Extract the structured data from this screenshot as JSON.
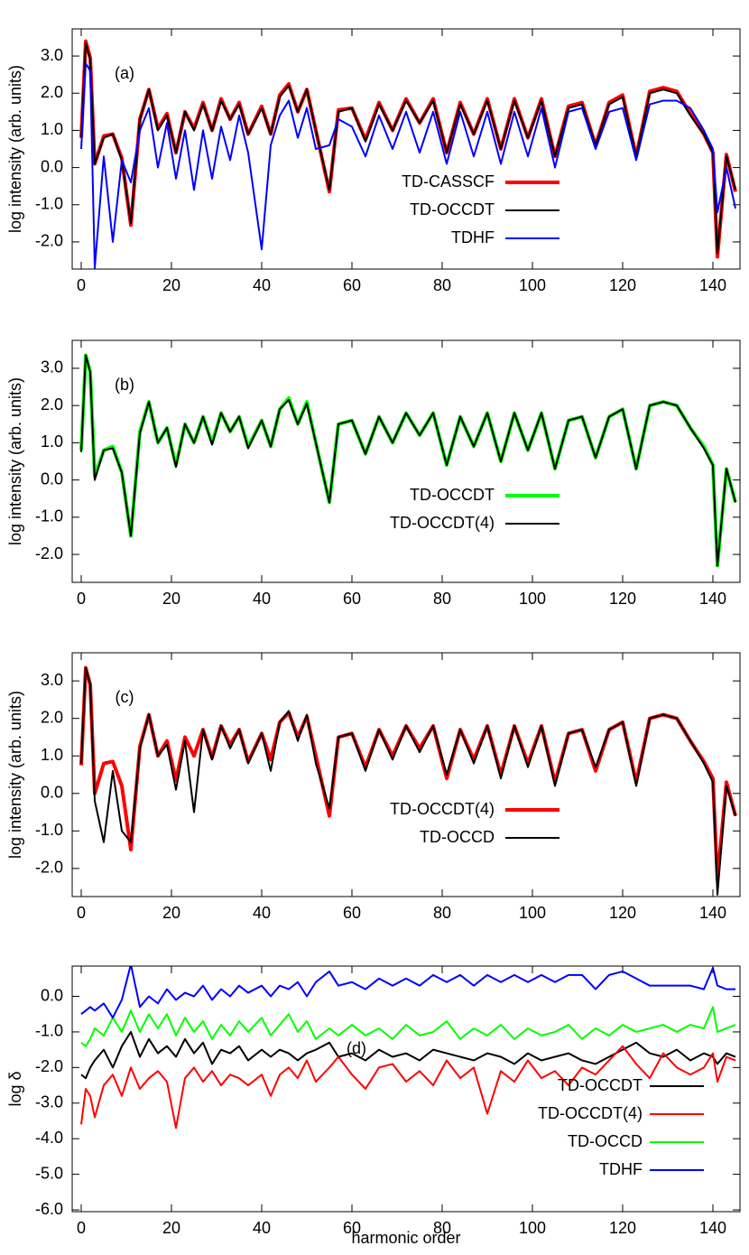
{
  "chart_data": [
    {
      "type": "line",
      "ylabel": "log intensity (arb. units)",
      "annotation": "(a)",
      "legend": "center right",
      "x": [
        0,
        1,
        2,
        3,
        5,
        7,
        9,
        11,
        13,
        15,
        17,
        19,
        21,
        23,
        25,
        27,
        29,
        31,
        33,
        35,
        37,
        40,
        42,
        44,
        46,
        48,
        50,
        52,
        55,
        57,
        60,
        63,
        66,
        69,
        72,
        75,
        78,
        81,
        84,
        87,
        90,
        93,
        96,
        99,
        102,
        105,
        108,
        111,
        114,
        117,
        120,
        123,
        126,
        129,
        132,
        135,
        138,
        140,
        141,
        143,
        145
      ],
      "xlim": [
        -2,
        146
      ],
      "xticks": [
        0,
        20,
        40,
        60,
        80,
        100,
        120,
        140
      ],
      "ylim": [
        -2.73,
        3.73
      ],
      "yticks": [
        {
          "value": -2,
          "label": "-2.0"
        },
        {
          "value": -1,
          "label": "-1.0"
        },
        {
          "value": 0,
          "label": "0.0"
        },
        {
          "value": 1,
          "label": "1.0"
        },
        {
          "value": 2,
          "label": "2.0"
        },
        {
          "value": 3,
          "label": "3.0"
        }
      ],
      "series": [
        {
          "name": "TD-CASSCF",
          "color": "#ff0000",
          "values": [
            0.8,
            3.4,
            2.95,
            0.1,
            0.85,
            0.9,
            0.25,
            -1.55,
            1.3,
            2.1,
            1.05,
            1.45,
            0.4,
            1.5,
            1.05,
            1.75,
            1.0,
            1.85,
            1.3,
            1.75,
            0.9,
            1.65,
            0.9,
            1.95,
            2.25,
            1.5,
            2.1,
            1.0,
            -0.65,
            1.55,
            1.6,
            0.75,
            1.75,
            1.0,
            1.85,
            1.2,
            1.85,
            0.4,
            1.75,
            0.9,
            1.85,
            0.5,
            1.85,
            0.8,
            1.85,
            0.3,
            1.65,
            1.75,
            0.6,
            1.75,
            1.95,
            0.3,
            2.05,
            2.15,
            2.05,
            1.45,
            0.9,
            0.4,
            -2.4,
            0.35,
            -0.65
          ]
        },
        {
          "name": "TD-OCCDT",
          "color": "#000000",
          "values": [
            0.8,
            3.35,
            2.9,
            0.1,
            0.8,
            0.9,
            0.2,
            -1.5,
            1.3,
            2.1,
            1.0,
            1.4,
            0.4,
            1.5,
            1.0,
            1.7,
            1.0,
            1.8,
            1.3,
            1.7,
            0.9,
            1.6,
            0.9,
            1.9,
            2.2,
            1.5,
            2.1,
            1.0,
            -0.6,
            1.5,
            1.6,
            0.7,
            1.7,
            1.0,
            1.8,
            1.2,
            1.8,
            0.4,
            1.7,
            0.9,
            1.8,
            0.5,
            1.8,
            0.8,
            1.8,
            0.3,
            1.6,
            1.7,
            0.6,
            1.7,
            1.9,
            0.3,
            2.0,
            2.1,
            2.0,
            1.4,
            0.9,
            0.4,
            -2.3,
            0.3,
            -0.6
          ]
        },
        {
          "name": "TDHF",
          "color": "#0000ff",
          "values": [
            0.5,
            2.8,
            2.6,
            -2.7,
            0.3,
            -2.0,
            0.2,
            -0.4,
            1.0,
            1.6,
            0.0,
            1.2,
            -0.3,
            1.0,
            -0.6,
            1.0,
            -0.3,
            1.1,
            0.2,
            1.4,
            0.4,
            -2.2,
            0.6,
            1.4,
            1.8,
            0.8,
            1.6,
            0.5,
            0.6,
            1.3,
            1.1,
            0.3,
            1.4,
            0.5,
            1.5,
            0.4,
            1.5,
            0.1,
            1.5,
            0.3,
            1.5,
            0.1,
            1.5,
            0.3,
            1.6,
            0.0,
            1.5,
            1.6,
            0.5,
            1.5,
            1.6,
            0.2,
            1.7,
            1.8,
            1.8,
            1.6,
            1.0,
            0.5,
            -1.2,
            0.0,
            -1.1
          ]
        }
      ]
    },
    {
      "type": "line",
      "ylabel": "log intensity (arb. units)",
      "annotation": "(b)",
      "legend": "center right",
      "x": [
        0,
        1,
        2,
        3,
        5,
        7,
        9,
        11,
        13,
        15,
        17,
        19,
        21,
        23,
        25,
        27,
        29,
        31,
        33,
        35,
        37,
        40,
        42,
        44,
        46,
        48,
        50,
        52,
        55,
        57,
        60,
        63,
        66,
        69,
        72,
        75,
        78,
        81,
        84,
        87,
        90,
        93,
        96,
        99,
        102,
        105,
        108,
        111,
        114,
        117,
        120,
        123,
        126,
        129,
        132,
        135,
        138,
        140,
        141,
        143,
        145
      ],
      "xlim": [
        -2,
        146
      ],
      "xticks": [
        0,
        20,
        40,
        60,
        80,
        100,
        120,
        140
      ],
      "ylim": [
        -2.75,
        3.75
      ],
      "yticks": [
        {
          "value": -2,
          "label": "-2.0"
        },
        {
          "value": -1,
          "label": "-1.0"
        },
        {
          "value": 0,
          "label": "0.0"
        },
        {
          "value": 1,
          "label": "1.0"
        },
        {
          "value": 2,
          "label": "2.0"
        },
        {
          "value": 3,
          "label": "3.0"
        }
      ],
      "series": [
        {
          "name": "TD-OCCDT",
          "color": "#00ff00",
          "values": [
            0.8,
            3.35,
            2.9,
            0.1,
            0.8,
            0.9,
            0.2,
            -1.5,
            1.3,
            2.1,
            1.0,
            1.4,
            0.4,
            1.5,
            1.0,
            1.7,
            1.0,
            1.8,
            1.3,
            1.7,
            0.9,
            1.6,
            0.9,
            1.9,
            2.2,
            1.5,
            2.1,
            1.0,
            -0.6,
            1.5,
            1.6,
            0.7,
            1.7,
            1.0,
            1.8,
            1.2,
            1.8,
            0.4,
            1.7,
            0.9,
            1.8,
            0.5,
            1.8,
            0.8,
            1.8,
            0.3,
            1.6,
            1.7,
            0.6,
            1.7,
            1.9,
            0.3,
            2.0,
            2.1,
            2.0,
            1.4,
            0.9,
            0.4,
            -2.3,
            0.3,
            -0.6
          ]
        },
        {
          "name": "TD-OCCDT(4)",
          "color": "#000000",
          "values": [
            0.75,
            3.35,
            2.9,
            0.0,
            0.8,
            0.85,
            0.2,
            -1.5,
            1.25,
            2.1,
            1.0,
            1.4,
            0.35,
            1.5,
            1.0,
            1.7,
            0.95,
            1.8,
            1.3,
            1.7,
            0.85,
            1.6,
            0.9,
            1.9,
            2.15,
            1.5,
            2.05,
            1.0,
            -0.6,
            1.5,
            1.6,
            0.7,
            1.7,
            1.0,
            1.8,
            1.2,
            1.8,
            0.4,
            1.7,
            0.9,
            1.8,
            0.5,
            1.8,
            0.8,
            1.8,
            0.3,
            1.6,
            1.7,
            0.6,
            1.7,
            1.9,
            0.3,
            2.0,
            2.1,
            2.0,
            1.4,
            0.85,
            0.4,
            -2.3,
            0.3,
            -0.6
          ]
        }
      ]
    },
    {
      "type": "line",
      "ylabel": "log intensity (arb. units)",
      "annotation": "(c)",
      "legend": "center right",
      "x": [
        0,
        1,
        2,
        3,
        5,
        7,
        9,
        11,
        13,
        15,
        17,
        19,
        21,
        23,
        25,
        27,
        29,
        31,
        33,
        35,
        37,
        40,
        42,
        44,
        46,
        48,
        50,
        52,
        55,
        57,
        60,
        63,
        66,
        69,
        72,
        75,
        78,
        81,
        84,
        87,
        90,
        93,
        96,
        99,
        102,
        105,
        108,
        111,
        114,
        117,
        120,
        123,
        126,
        129,
        132,
        135,
        138,
        140,
        141,
        143,
        145
      ],
      "xlim": [
        -2,
        146
      ],
      "xticks": [
        0,
        20,
        40,
        60,
        80,
        100,
        120,
        140
      ],
      "ylim": [
        -2.75,
        3.75
      ],
      "yticks": [
        {
          "value": -2,
          "label": "-2.0"
        },
        {
          "value": -1,
          "label": "-1.0"
        },
        {
          "value": 0,
          "label": "0.0"
        },
        {
          "value": 1,
          "label": "1.0"
        },
        {
          "value": 2,
          "label": "2.0"
        },
        {
          "value": 3,
          "label": "3.0"
        }
      ],
      "series": [
        {
          "name": "TD-OCCDT(4)",
          "color": "#ff0000",
          "values": [
            0.75,
            3.35,
            2.9,
            0.0,
            0.8,
            0.85,
            0.2,
            -1.5,
            1.25,
            2.1,
            1.0,
            1.4,
            0.35,
            1.5,
            1.0,
            1.7,
            0.95,
            1.8,
            1.3,
            1.7,
            0.85,
            1.6,
            0.9,
            1.9,
            2.15,
            1.5,
            2.05,
            1.0,
            -0.6,
            1.5,
            1.6,
            0.7,
            1.7,
            1.0,
            1.8,
            1.2,
            1.8,
            0.4,
            1.7,
            0.9,
            1.8,
            0.5,
            1.8,
            0.8,
            1.8,
            0.3,
            1.6,
            1.7,
            0.6,
            1.7,
            1.9,
            0.3,
            2.0,
            2.1,
            2.0,
            1.4,
            0.85,
            0.4,
            -2.3,
            0.3,
            -0.6
          ]
        },
        {
          "name": "TD-OCCD",
          "color": "#000000",
          "values": [
            0.8,
            3.35,
            2.9,
            -0.2,
            -1.3,
            0.6,
            -1.0,
            -1.3,
            1.2,
            2.1,
            1.0,
            1.3,
            0.1,
            1.4,
            -0.5,
            1.7,
            0.9,
            1.8,
            1.2,
            1.7,
            0.8,
            1.6,
            0.6,
            1.9,
            2.2,
            1.4,
            2.1,
            0.8,
            -0.4,
            1.5,
            1.6,
            0.6,
            1.7,
            0.9,
            1.8,
            1.1,
            1.8,
            0.5,
            1.7,
            0.8,
            1.8,
            0.4,
            1.8,
            0.7,
            1.8,
            0.2,
            1.6,
            1.7,
            0.7,
            1.7,
            1.9,
            0.2,
            2.0,
            2.1,
            2.0,
            1.4,
            0.8,
            0.3,
            -2.7,
            0.2,
            -0.6
          ]
        }
      ]
    },
    {
      "type": "line",
      "ylabel": "log δ",
      "xlabel": "harmonic order",
      "annotation": "(d)",
      "legend": "lower right",
      "x": [
        0,
        1,
        2,
        3,
        5,
        7,
        9,
        11,
        13,
        15,
        17,
        19,
        21,
        23,
        25,
        27,
        29,
        31,
        33,
        35,
        37,
        40,
        42,
        44,
        46,
        48,
        50,
        52,
        55,
        57,
        60,
        63,
        66,
        69,
        72,
        75,
        78,
        81,
        84,
        87,
        90,
        93,
        96,
        99,
        102,
        105,
        108,
        111,
        114,
        117,
        120,
        123,
        126,
        129,
        132,
        135,
        138,
        140,
        141,
        143,
        145
      ],
      "xlim": [
        -2,
        146
      ],
      "xticks": [
        0,
        20,
        40,
        60,
        80,
        100,
        120,
        140
      ],
      "ylim": [
        -6.05,
        0.85
      ],
      "yticks": [
        {
          "value": -6,
          "label": "-6.0"
        },
        {
          "value": -5,
          "label": "-5.0"
        },
        {
          "value": -4,
          "label": "-4.0"
        },
        {
          "value": -3,
          "label": "-3.0"
        },
        {
          "value": -2,
          "label": "-2.0"
        },
        {
          "value": -1,
          "label": "-1.0"
        },
        {
          "value": 0,
          "label": "0.0"
        }
      ],
      "series": [
        {
          "name": "TD-OCCDT",
          "color": "#000000",
          "values": [
            -2.2,
            -2.3,
            -2.0,
            -1.8,
            -1.5,
            -2.0,
            -1.4,
            -1.0,
            -1.7,
            -1.2,
            -1.6,
            -1.4,
            -1.7,
            -1.2,
            -1.6,
            -1.3,
            -1.9,
            -1.5,
            -1.6,
            -1.4,
            -1.8,
            -1.5,
            -1.7,
            -1.5,
            -1.6,
            -1.8,
            -1.6,
            -1.5,
            -1.3,
            -1.7,
            -1.6,
            -1.8,
            -1.5,
            -1.7,
            -1.6,
            -1.8,
            -1.5,
            -1.6,
            -1.7,
            -1.8,
            -1.6,
            -1.7,
            -1.9,
            -1.6,
            -1.8,
            -1.7,
            -1.6,
            -1.8,
            -1.9,
            -1.7,
            -1.5,
            -1.3,
            -1.6,
            -1.7,
            -1.5,
            -1.8,
            -1.6,
            -1.7,
            -1.9,
            -1.6,
            -1.7
          ]
        },
        {
          "name": "TD-OCCDT(4)",
          "color": "#ff0000",
          "values": [
            -3.6,
            -2.6,
            -2.8,
            -3.4,
            -2.5,
            -2.2,
            -2.8,
            -2.0,
            -2.6,
            -2.3,
            -2.1,
            -2.4,
            -3.7,
            -2.3,
            -2.0,
            -2.4,
            -2.1,
            -2.5,
            -2.2,
            -2.3,
            -2.5,
            -2.2,
            -2.8,
            -2.2,
            -2.0,
            -2.3,
            -1.8,
            -2.4,
            -2.0,
            -1.7,
            -2.2,
            -2.6,
            -2.0,
            -1.9,
            -2.4,
            -2.1,
            -2.5,
            -1.8,
            -2.3,
            -2.0,
            -3.3,
            -2.1,
            -2.4,
            -1.8,
            -2.3,
            -2.1,
            -2.5,
            -2.0,
            -2.2,
            -1.8,
            -1.4,
            -1.9,
            -2.3,
            -1.6,
            -2.0,
            -2.2,
            -2.0,
            -1.6,
            -2.4,
            -1.7,
            -1.8
          ]
        },
        {
          "name": "TD-OCCD",
          "color": "#00ff00",
          "values": [
            -1.3,
            -1.4,
            -1.2,
            -0.9,
            -1.1,
            -0.6,
            -1.0,
            -0.4,
            -1.0,
            -0.5,
            -0.9,
            -0.5,
            -1.1,
            -0.6,
            -1.0,
            -0.7,
            -1.2,
            -0.8,
            -1.1,
            -0.7,
            -1.0,
            -0.6,
            -1.1,
            -0.8,
            -0.5,
            -1.0,
            -0.7,
            -1.2,
            -0.9,
            -1.1,
            -0.8,
            -1.1,
            -0.9,
            -1.2,
            -0.8,
            -1.1,
            -1.0,
            -0.7,
            -1.2,
            -0.9,
            -1.1,
            -0.8,
            -1.2,
            -0.9,
            -1.1,
            -1.0,
            -0.8,
            -1.2,
            -0.9,
            -1.1,
            -0.8,
            -1.0,
            -0.9,
            -0.8,
            -1.0,
            -0.8,
            -0.9,
            -0.3,
            -1.0,
            -0.9,
            -0.8
          ]
        },
        {
          "name": "TDHF",
          "color": "#0000ff",
          "values": [
            -0.5,
            -0.4,
            -0.3,
            -0.4,
            -0.2,
            -0.6,
            -0.1,
            0.9,
            -0.3,
            0.0,
            -0.2,
            0.2,
            -0.1,
            0.1,
            0.0,
            0.3,
            -0.1,
            0.2,
            0.0,
            0.3,
            0.1,
            0.3,
            0.0,
            0.3,
            0.2,
            0.4,
            0.0,
            0.4,
            0.7,
            0.3,
            0.4,
            0.2,
            0.5,
            0.3,
            0.5,
            0.3,
            0.6,
            0.4,
            0.6,
            0.3,
            0.6,
            0.4,
            0.6,
            0.4,
            0.6,
            0.4,
            0.6,
            0.6,
            0.2,
            0.6,
            0.7,
            0.5,
            0.3,
            0.3,
            0.3,
            0.3,
            0.2,
            0.8,
            0.3,
            0.2,
            0.2
          ]
        }
      ]
    }
  ]
}
